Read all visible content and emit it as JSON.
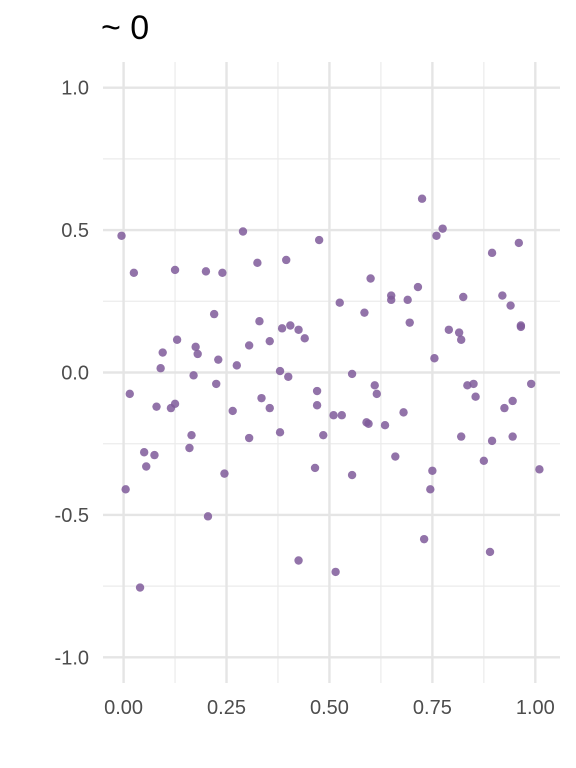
{
  "chart_data": {
    "type": "scatter",
    "title": "~ 0",
    "xlabel": "",
    "ylabel": "",
    "xlim": [
      -0.05,
      1.06
    ],
    "ylim": [
      -1.09,
      1.09
    ],
    "x_ticks": [
      0.0,
      0.25,
      0.5,
      0.75,
      1.0
    ],
    "x_tick_labels": [
      "0.00",
      "0.25",
      "0.50",
      "0.75",
      "1.00"
    ],
    "y_ticks": [
      -1.0,
      -0.5,
      0.0,
      0.5,
      1.0
    ],
    "y_tick_labels": [
      "-1.0",
      "-0.5",
      "0.0",
      "0.5",
      "1.0"
    ],
    "grid": true,
    "point_color": "#7f5a9a",
    "points": [
      [
        -0.005,
        0.48
      ],
      [
        0.005,
        -0.41
      ],
      [
        0.015,
        -0.075
      ],
      [
        0.025,
        0.35
      ],
      [
        0.04,
        -0.755
      ],
      [
        0.05,
        -0.28
      ],
      [
        0.055,
        -0.33
      ],
      [
        0.075,
        -0.29
      ],
      [
        0.08,
        -0.12
      ],
      [
        0.09,
        0.015
      ],
      [
        0.095,
        0.07
      ],
      [
        0.115,
        -0.125
      ],
      [
        0.125,
        0.36
      ],
      [
        0.125,
        -0.11
      ],
      [
        0.13,
        0.115
      ],
      [
        0.16,
        -0.265
      ],
      [
        0.165,
        -0.22
      ],
      [
        0.17,
        -0.01
      ],
      [
        0.175,
        0.09
      ],
      [
        0.18,
        0.065
      ],
      [
        0.2,
        0.355
      ],
      [
        0.205,
        -0.505
      ],
      [
        0.22,
        0.205
      ],
      [
        0.225,
        -0.04
      ],
      [
        0.23,
        0.045
      ],
      [
        0.24,
        0.35
      ],
      [
        0.245,
        -0.355
      ],
      [
        0.265,
        -0.135
      ],
      [
        0.275,
        0.025
      ],
      [
        0.29,
        0.495
      ],
      [
        0.305,
        0.095
      ],
      [
        0.305,
        -0.23
      ],
      [
        0.325,
        0.385
      ],
      [
        0.33,
        0.18
      ],
      [
        0.335,
        -0.09
      ],
      [
        0.355,
        0.11
      ],
      [
        0.355,
        -0.125
      ],
      [
        0.38,
        0.005
      ],
      [
        0.38,
        -0.21
      ],
      [
        0.385,
        0.155
      ],
      [
        0.395,
        0.395
      ],
      [
        0.4,
        -0.015
      ],
      [
        0.405,
        0.165
      ],
      [
        0.425,
        0.15
      ],
      [
        0.425,
        -0.66
      ],
      [
        0.44,
        0.12
      ],
      [
        0.465,
        -0.335
      ],
      [
        0.47,
        -0.065
      ],
      [
        0.47,
        -0.115
      ],
      [
        0.475,
        0.465
      ],
      [
        0.485,
        -0.22
      ],
      [
        0.51,
        -0.15
      ],
      [
        0.515,
        -0.7
      ],
      [
        0.525,
        0.245
      ],
      [
        0.53,
        -0.15
      ],
      [
        0.555,
        -0.005
      ],
      [
        0.555,
        -0.36
      ],
      [
        0.585,
        0.21
      ],
      [
        0.59,
        -0.175
      ],
      [
        0.595,
        -0.18
      ],
      [
        0.6,
        0.33
      ],
      [
        0.61,
        -0.045
      ],
      [
        0.615,
        -0.075
      ],
      [
        0.635,
        -0.185
      ],
      [
        0.65,
        0.255
      ],
      [
        0.65,
        0.27
      ],
      [
        0.66,
        -0.295
      ],
      [
        0.68,
        -0.14
      ],
      [
        0.69,
        0.255
      ],
      [
        0.695,
        0.175
      ],
      [
        0.715,
        0.3
      ],
      [
        0.725,
        0.61
      ],
      [
        0.73,
        -0.585
      ],
      [
        0.745,
        -0.41
      ],
      [
        0.75,
        -0.345
      ],
      [
        0.755,
        0.05
      ],
      [
        0.76,
        0.48
      ],
      [
        0.775,
        0.505
      ],
      [
        0.79,
        0.15
      ],
      [
        0.815,
        0.14
      ],
      [
        0.82,
        0.115
      ],
      [
        0.82,
        -0.225
      ],
      [
        0.825,
        0.265
      ],
      [
        0.835,
        -0.045
      ],
      [
        0.85,
        -0.04
      ],
      [
        0.855,
        -0.085
      ],
      [
        0.875,
        -0.31
      ],
      [
        0.89,
        -0.63
      ],
      [
        0.895,
        0.42
      ],
      [
        0.895,
        -0.24
      ],
      [
        0.92,
        0.27
      ],
      [
        0.925,
        -0.125
      ],
      [
        0.94,
        0.235
      ],
      [
        0.945,
        -0.1
      ],
      [
        0.945,
        -0.225
      ],
      [
        0.96,
        0.455
      ],
      [
        0.965,
        0.16
      ],
      [
        0.965,
        0.165
      ],
      [
        0.99,
        -0.04
      ],
      [
        1.01,
        -0.34
      ]
    ]
  }
}
